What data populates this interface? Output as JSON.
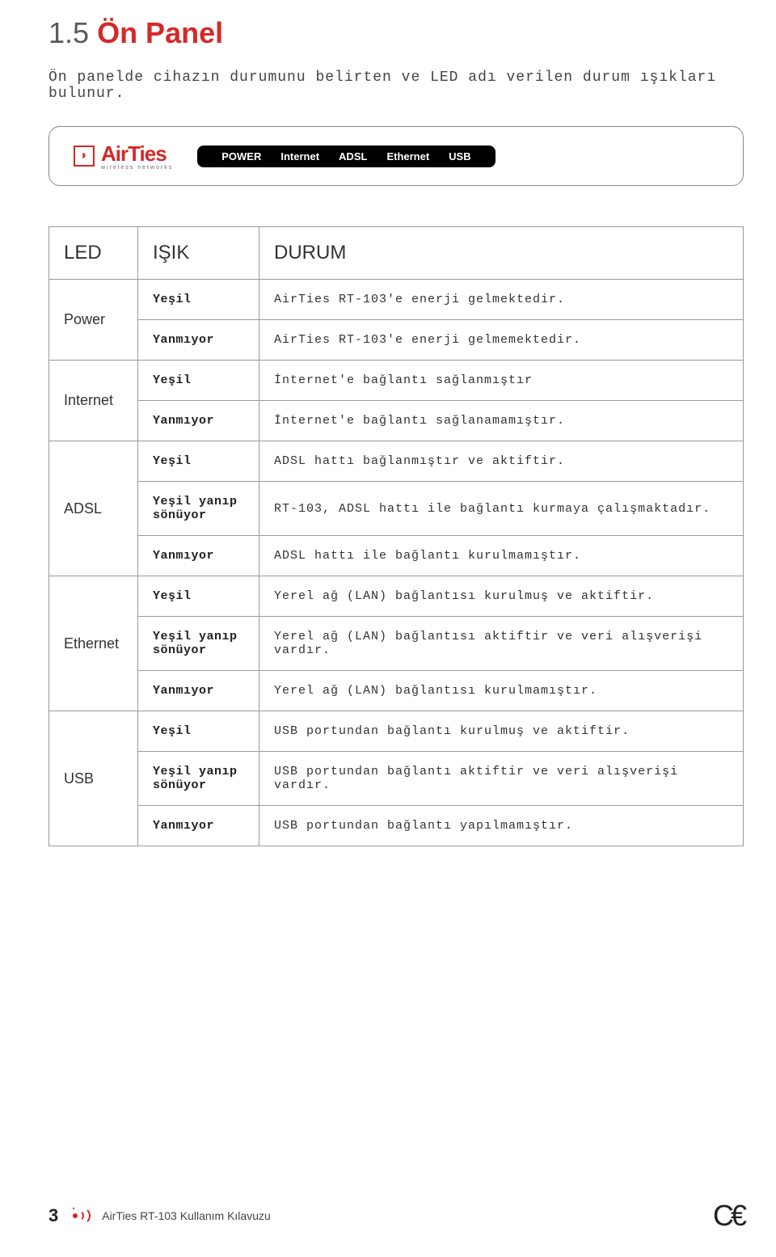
{
  "section": {
    "number": "1.5",
    "title": "Ön Panel"
  },
  "intro": "Ön panelde cihazın durumunu belirten ve LED adı verilen durum ışıkları bulunur.",
  "panel": {
    "brand": "AirTies",
    "brand_sub": "wireless networks",
    "labels": [
      "POWER",
      "Internet",
      "ADSL",
      "Ethernet",
      "USB"
    ]
  },
  "table": {
    "headers": {
      "led": "LED",
      "isik": "IŞIK",
      "durum": "DURUM"
    },
    "groups": [
      {
        "led": "Power",
        "rows": [
          {
            "isik": "Yeşil",
            "durum": "AirTies RT-103'e enerji gelmektedir."
          },
          {
            "isik": "Yanmıyor",
            "durum": "AirTies RT-103'e enerji gelmemektedir."
          }
        ]
      },
      {
        "led": "Internet",
        "rows": [
          {
            "isik": "Yeşil",
            "durum": "İnternet'e bağlantı sağlanmıştır"
          },
          {
            "isik": "Yanmıyor",
            "durum": "İnternet'e bağlantı sağlanamamıştır."
          }
        ]
      },
      {
        "led": "ADSL",
        "rows": [
          {
            "isik": "Yeşil",
            "durum": "ADSL hattı bağlanmıştır ve aktiftir."
          },
          {
            "isik": "Yeşil yanıp sönüyor",
            "durum": "RT-103, ADSL hattı ile bağlantı kurmaya çalışmaktadır."
          },
          {
            "isik": "Yanmıyor",
            "durum": "ADSL hattı ile bağlantı kurulmamıştır."
          }
        ]
      },
      {
        "led": "Ethernet",
        "rows": [
          {
            "isik": "Yeşil",
            "durum": "Yerel ağ (LAN) bağlantısı kurulmuş ve aktiftir."
          },
          {
            "isik": "Yeşil yanıp sönüyor",
            "durum": "Yerel ağ (LAN) bağlantısı aktiftir ve veri alışverişi vardır."
          },
          {
            "isik": "Yanmıyor",
            "durum": "Yerel ağ (LAN) bağlantısı kurulmamıştır."
          }
        ]
      },
      {
        "led": "USB",
        "rows": [
          {
            "isik": "Yeşil",
            "durum": "USB portundan bağlantı kurulmuş ve aktiftir."
          },
          {
            "isik": "Yeşil yanıp sönüyor",
            "durum": "USB portundan bağlantı aktiftir ve veri alışverişi vardır."
          },
          {
            "isik": "Yanmıyor",
            "durum": "USB portundan bağlantı yapılmamıştır."
          }
        ]
      }
    ]
  },
  "footer": {
    "page": "3",
    "title": "AirTies RT-103 Kullanım Kılavuzu",
    "ce": "C€"
  }
}
